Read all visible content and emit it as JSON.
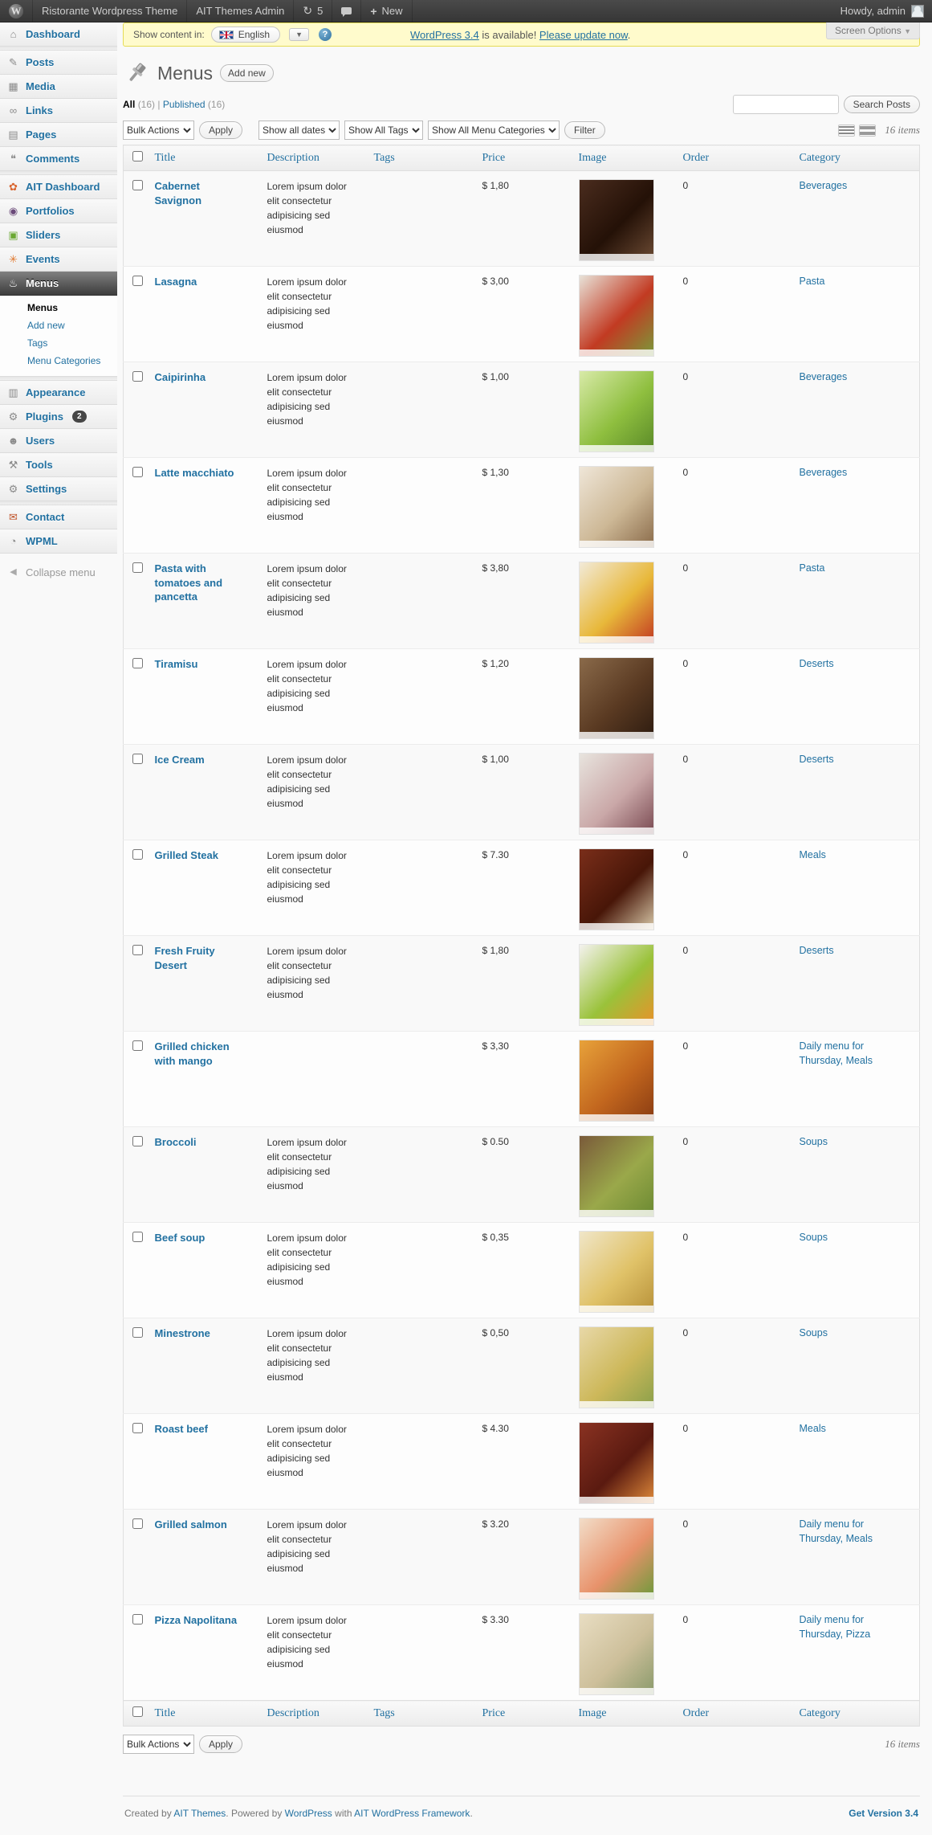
{
  "admin_bar": {
    "logo_glyph": "W",
    "site_name": "Ristorante Wordpress Theme",
    "themes_admin": "AIT Themes Admin",
    "updates_glyph": "↻",
    "updates_count": "5",
    "plus_glyph": "+",
    "new_label": "New",
    "howdy": "Howdy, admin"
  },
  "screen_options": {
    "label": "Screen Options",
    "arrow": "▼"
  },
  "notice": {
    "show_content_label": "Show content in:",
    "language": "English",
    "lang_arrow": "▼",
    "help_glyph": "?",
    "update_link1": "WordPress 3.4",
    "update_mid": " is available! ",
    "update_link2": "Please update now",
    "update_end": "."
  },
  "page": {
    "title": "Menus",
    "add_new_label": "Add new"
  },
  "views": {
    "all_label": "All",
    "all_count": "(16)",
    "separator": "|",
    "published_label": "Published",
    "published_count": "(16)"
  },
  "search": {
    "value": "",
    "button_label": "Search Posts"
  },
  "tablenav": {
    "bulk_actions": "Bulk Actions",
    "apply_label": "Apply",
    "dates_filter": "Show all dates",
    "tags_filter": "Show All Tags",
    "categories_filter": "Show All Menu Categories",
    "filter_label": "Filter",
    "items_count": "16 items"
  },
  "table": {
    "headers": {
      "title": "Title",
      "description": "Description",
      "tags": "Tags",
      "price": "Price",
      "image": "Image",
      "order": "Order",
      "category": "Category"
    },
    "rows": [
      {
        "title": "Cabernet Savignon",
        "description": "Lorem ipsum dolor elit consectetur adipisicing sed eiusmod",
        "tags": "",
        "price": "$ 1,80",
        "order": "0",
        "category": "Beverages",
        "image": "wine-glass",
        "img_colors": [
          "#4a2c1e",
          "#241107",
          "#6b4a33"
        ]
      },
      {
        "title": "Lasagna",
        "description": "Lorem ipsum dolor elit consectetur adipisicing sed eiusmod",
        "tags": "",
        "price": "$ 3,00",
        "order": "0",
        "category": "Pasta",
        "image": "lasagna",
        "img_colors": [
          "#e8e2d8",
          "#c23a22",
          "#7a9a3a"
        ]
      },
      {
        "title": "Caipirinha",
        "description": "Lorem ipsum dolor elit consectetur adipisicing sed eiusmod",
        "tags": "",
        "price": "$ 1,00",
        "order": "0",
        "category": "Beverages",
        "image": "caipirinha",
        "img_colors": [
          "#d8eaa8",
          "#8fbf3f",
          "#5a8a28"
        ]
      },
      {
        "title": "Latte macchiato",
        "description": "Lorem ipsum dolor elit consectetur adipisicing sed eiusmod",
        "tags": "",
        "price": "$ 1,30",
        "order": "0",
        "category": "Beverages",
        "image": "latte-macchiato",
        "img_colors": [
          "#efe6d8",
          "#cdb896",
          "#8a6b4a"
        ]
      },
      {
        "title": "Pasta with tomatoes and pancetta",
        "description": "Lorem ipsum dolor elit consectetur adipisicing sed eiusmod",
        "tags": "",
        "price": "$ 3,80",
        "order": "0",
        "category": "Pasta",
        "image": "pasta-tomatoes",
        "img_colors": [
          "#f2ead8",
          "#e8b83a",
          "#c23a22"
        ]
      },
      {
        "title": "Tiramisu",
        "description": "Lorem ipsum dolor elit consectetur adipisicing sed eiusmod",
        "tags": "",
        "price": "$ 1,20",
        "order": "0",
        "category": "Deserts",
        "image": "tiramisu",
        "img_colors": [
          "#8a6a4a",
          "#5a3a22",
          "#2e1c10"
        ]
      },
      {
        "title": "Ice Cream",
        "description": "Lorem ipsum dolor elit consectetur adipisicing sed eiusmod",
        "tags": "",
        "price": "$ 1,00",
        "order": "0",
        "category": "Deserts",
        "image": "ice-cream-sundae",
        "img_colors": [
          "#e8e4de",
          "#caa8a8",
          "#7a4a52"
        ]
      },
      {
        "title": "Grilled Steak",
        "description": "Lorem ipsum dolor elit consectetur adipisicing sed eiusmod",
        "tags": "",
        "price": "$ 7.30",
        "order": "0",
        "category": "Meals",
        "image": "grilled-steak",
        "img_colors": [
          "#7a2e1a",
          "#481608",
          "#d8c8a8"
        ]
      },
      {
        "title": "Fresh Fruity Desert",
        "description": "Lorem ipsum dolor elit consectetur adipisicing sed eiusmod",
        "tags": "",
        "price": "$ 1,80",
        "order": "0",
        "category": "Deserts",
        "image": "fruit-salad",
        "img_colors": [
          "#f4f2ee",
          "#9ac23a",
          "#e8922a"
        ]
      },
      {
        "title": "Grilled chicken with mango",
        "description": "",
        "tags": "",
        "price": "$ 3,30",
        "order": "0",
        "category": "Daily menu for Thursday, Meals",
        "image": "grilled-chicken-mango",
        "img_colors": [
          "#e8a23a",
          "#c2661e",
          "#8a3c12"
        ]
      },
      {
        "title": "Broccoli",
        "description": "Lorem ipsum dolor elit consectetur adipisicing sed eiusmod",
        "tags": "",
        "price": "$ 0.50",
        "order": "0",
        "category": "Soups",
        "image": "broccoli-soup",
        "img_colors": [
          "#7a5a3a",
          "#9aa84a",
          "#6b8a32"
        ]
      },
      {
        "title": "Beef soup",
        "description": "Lorem ipsum dolor elit consectetur adipisicing sed eiusmod",
        "tags": "",
        "price": "$ 0,35",
        "order": "0",
        "category": "Soups",
        "image": "beef-soup",
        "img_colors": [
          "#f0e6c8",
          "#e0c268",
          "#b8923a"
        ]
      },
      {
        "title": "Minestrone",
        "description": "Lorem ipsum dolor elit consectetur adipisicing sed eiusmod",
        "tags": "",
        "price": "$ 0,50",
        "order": "0",
        "category": "Soups",
        "image": "minestrone-soup",
        "img_colors": [
          "#e8d8a8",
          "#cdb85a",
          "#8aa04a"
        ]
      },
      {
        "title": "Roast beef",
        "description": "Lorem ipsum dolor elit consectetur adipisicing sed eiusmod",
        "tags": "",
        "price": "$ 4.30",
        "order": "0",
        "category": "Meals",
        "image": "roast-beef",
        "img_colors": [
          "#8a3222",
          "#5a1a10",
          "#e08a3a"
        ]
      },
      {
        "title": "Grilled salmon",
        "description": "Lorem ipsum dolor elit consectetur adipisicing sed eiusmod",
        "tags": "",
        "price": "$ 3.20",
        "order": "0",
        "category": "Daily menu for Thursday, Meals",
        "image": "grilled-salmon",
        "img_colors": [
          "#f2ddc8",
          "#e8926b",
          "#6b9a3a"
        ]
      },
      {
        "title": "Pizza Napolitana",
        "description": "Lorem ipsum dolor elit consectetur adipisicing sed eiusmod",
        "tags": "",
        "price": "$ 3.30",
        "order": "0",
        "category": "Daily menu for Thursday, Pizza",
        "image": "pizza-napolitana",
        "img_colors": [
          "#e8ddc2",
          "#cdbf9a",
          "#8a9a6b"
        ]
      }
    ]
  },
  "sidebar": {
    "items": [
      {
        "name": "dashboard",
        "label": "Dashboard",
        "glyph": "⌂"
      },
      {
        "sep": true
      },
      {
        "name": "posts",
        "label": "Posts",
        "glyph": "✎"
      },
      {
        "name": "media",
        "label": "Media",
        "glyph": "▦"
      },
      {
        "name": "links",
        "label": "Links",
        "glyph": "∞"
      },
      {
        "name": "pages",
        "label": "Pages",
        "glyph": "▤"
      },
      {
        "name": "comments",
        "label": "Comments",
        "glyph": "❝"
      },
      {
        "sep": true
      },
      {
        "name": "ait-dashboard",
        "label": "AIT Dashboard",
        "glyph": "✿",
        "glyph_color": "#d9652f"
      },
      {
        "name": "portfolios",
        "label": "Portfolios",
        "glyph": "◉",
        "glyph_color": "#6b4a7a"
      },
      {
        "name": "sliders",
        "label": "Sliders",
        "glyph": "▣",
        "glyph_color": "#6aa832"
      },
      {
        "name": "events",
        "label": "Events",
        "glyph": "✳",
        "glyph_color": "#e0762a"
      },
      {
        "name": "menus",
        "label": "Menus",
        "glyph": "♨",
        "active": true,
        "submenu": [
          {
            "name": "menus",
            "label": "Menus",
            "current": true
          },
          {
            "name": "add-new",
            "label": "Add new"
          },
          {
            "name": "tags",
            "label": "Tags"
          },
          {
            "name": "menu-categories",
            "label": "Menu Categories"
          }
        ]
      },
      {
        "sep": true
      },
      {
        "name": "appearance",
        "label": "Appearance",
        "glyph": "▥"
      },
      {
        "name": "plugins",
        "label": "Plugins",
        "glyph": "⚙",
        "badge": "2"
      },
      {
        "name": "users",
        "label": "Users",
        "glyph": "☻"
      },
      {
        "name": "tools",
        "label": "Tools",
        "glyph": "⚒"
      },
      {
        "name": "settings",
        "label": "Settings",
        "glyph": "⚙"
      },
      {
        "sep": true
      },
      {
        "name": "contact",
        "label": "Contact",
        "glyph": "✉",
        "glyph_color": "#c0542a"
      },
      {
        "name": "wpml",
        "label": "WPML",
        "glyph": "◔"
      },
      {
        "name": "collapse-menu",
        "label": "Collapse menu",
        "glyph": "◀",
        "muted": true
      }
    ]
  },
  "footer": {
    "created_by": "Created by ",
    "ait_themes_link": "AIT Themes",
    "powered_by": ". Powered by ",
    "wordpress_link": "WordPress",
    "with_word": " with ",
    "framework_link": "AIT WordPress Framework",
    "end": ".",
    "get_version": "Get Version 3.4"
  }
}
